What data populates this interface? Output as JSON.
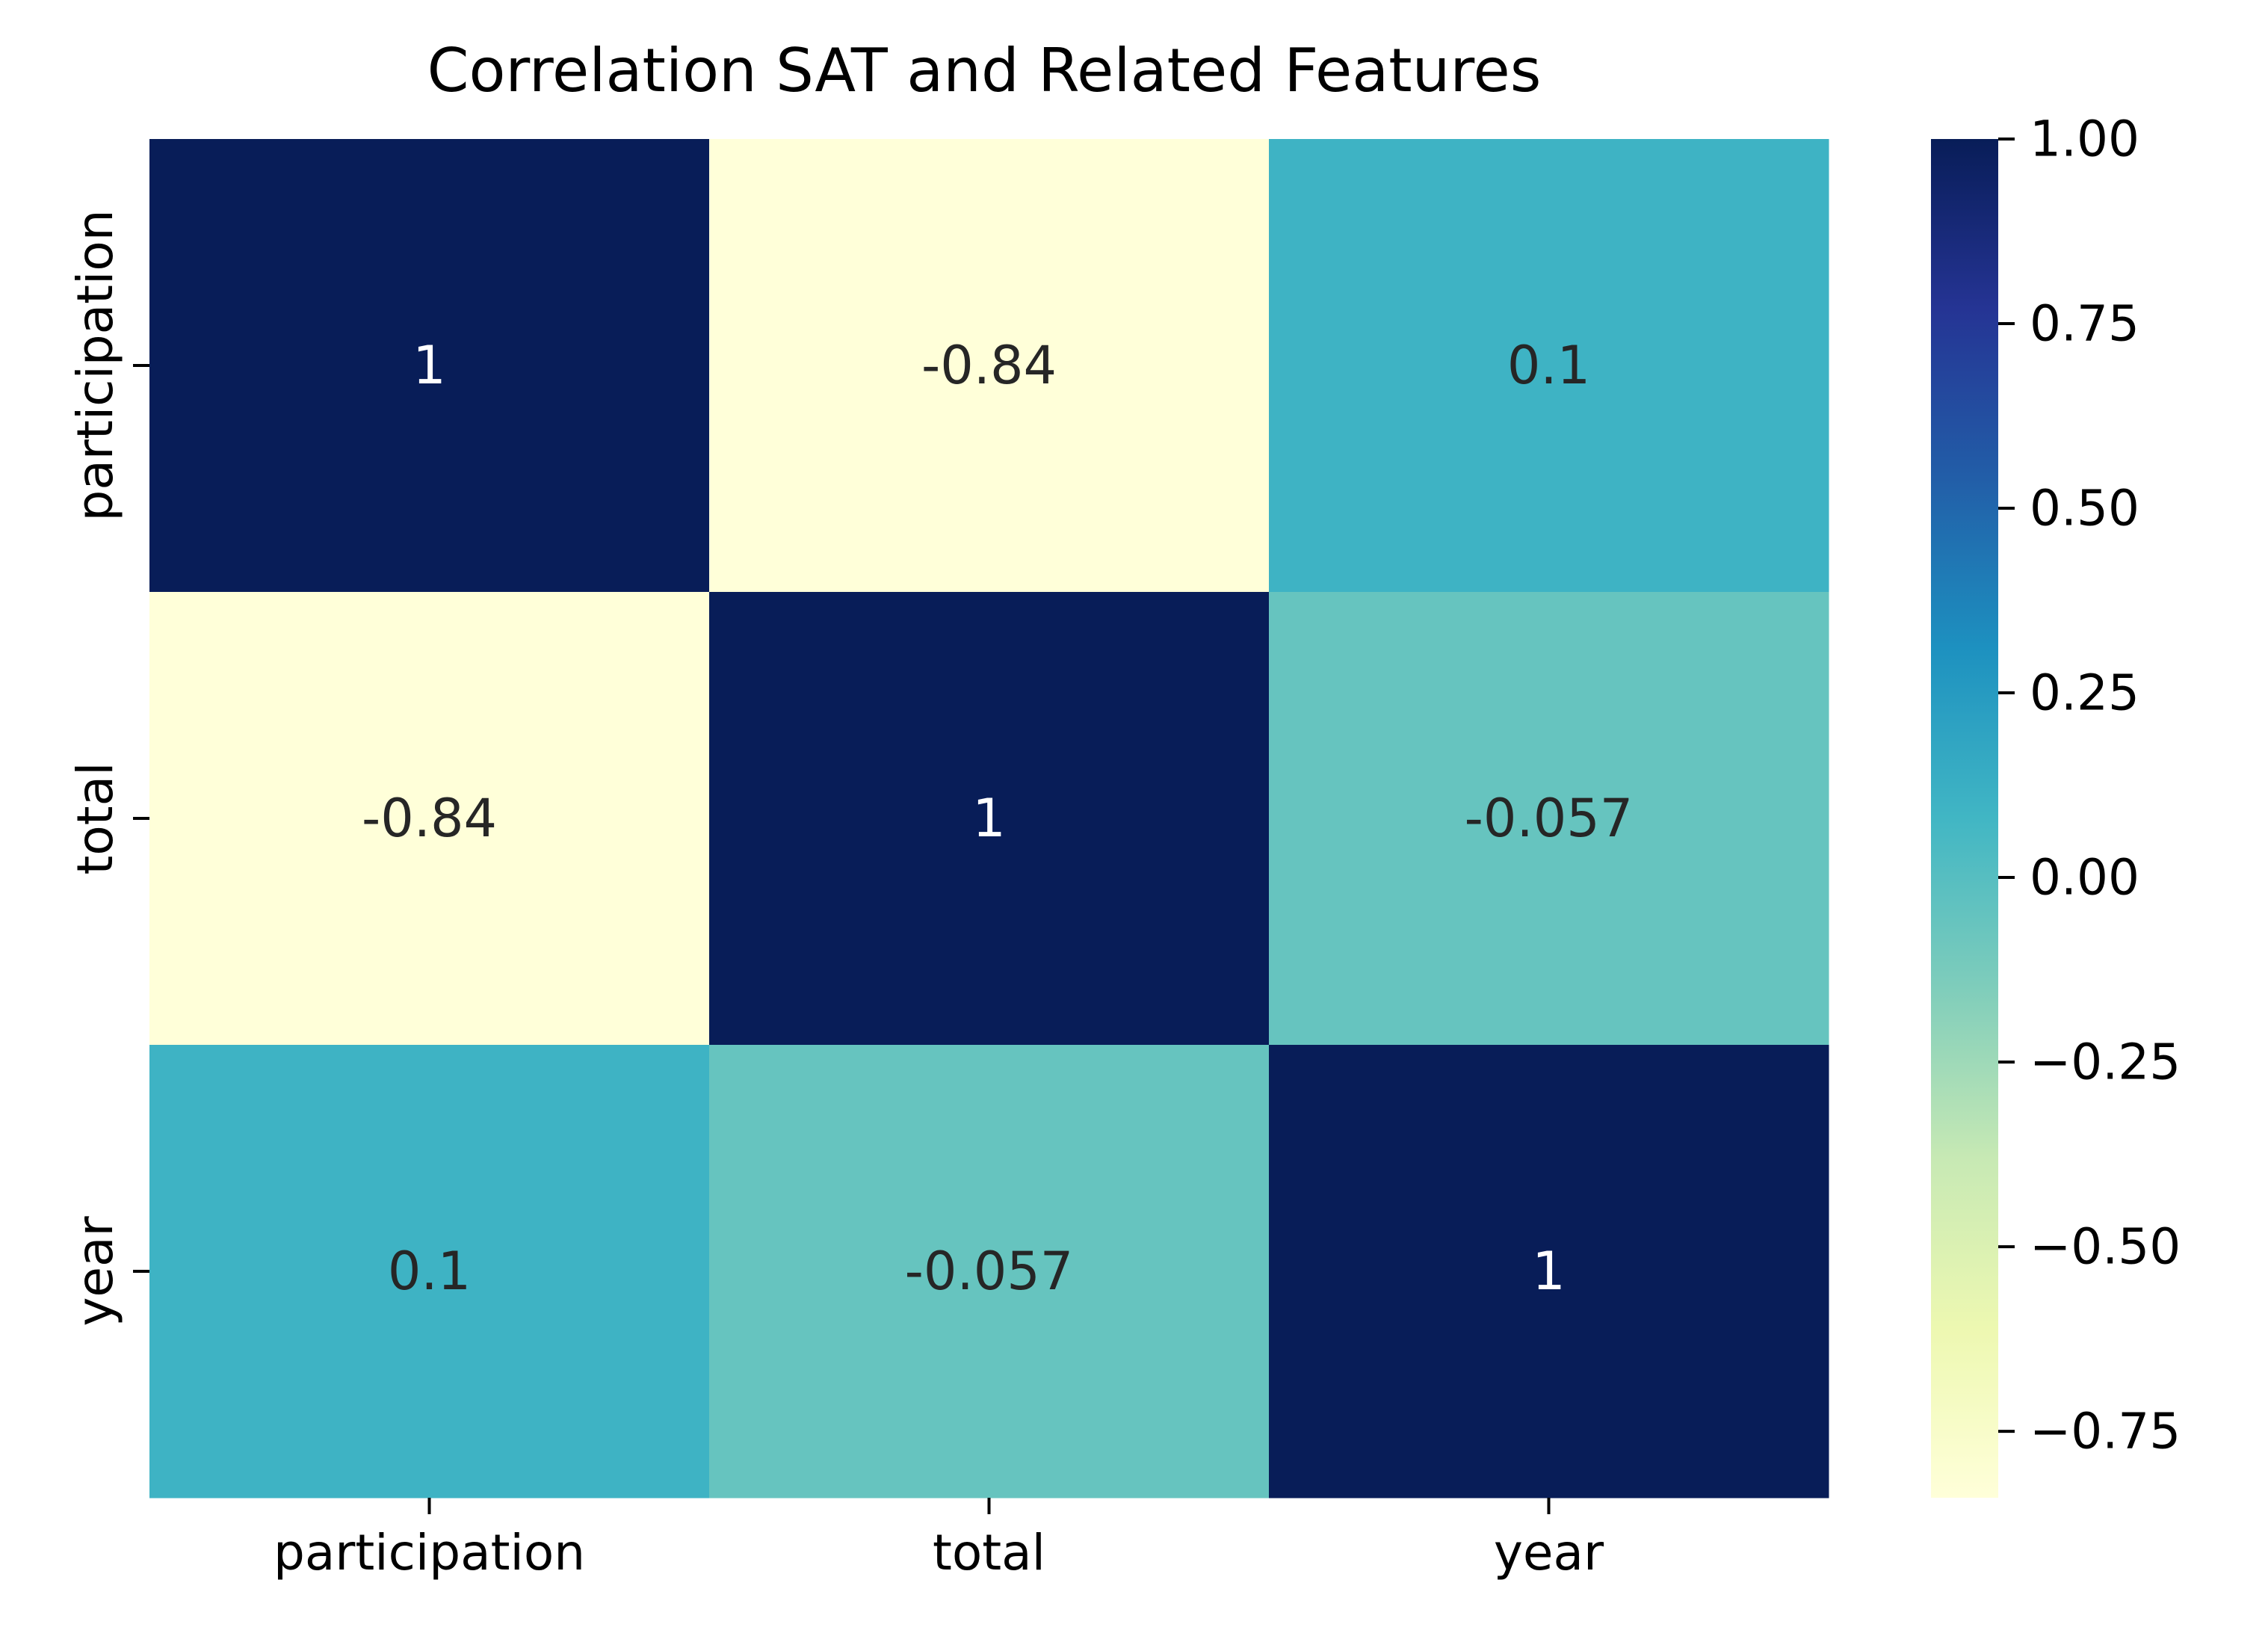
{
  "chart_data": {
    "type": "heatmap",
    "title": "Correlation SAT and Related Features",
    "xlabel": "",
    "ylabel": "",
    "x_categories": [
      "participation",
      "total",
      "year"
    ],
    "y_categories": [
      "participation",
      "total",
      "year"
    ],
    "values": [
      [
        1,
        -0.84,
        0.1
      ],
      [
        -0.84,
        1,
        -0.057
      ],
      [
        0.1,
        -0.057,
        1
      ]
    ],
    "annotations": [
      [
        "1",
        "-0.84",
        "0.1"
      ],
      [
        "-0.84",
        "1",
        "-0.057"
      ],
      [
        "0.1",
        "-0.057",
        "1"
      ]
    ],
    "colormap": "YlGnBu",
    "colormap_stops": [
      "#ffffd9",
      "#edf8b1",
      "#c7e9b4",
      "#7fcdbb",
      "#41b6c4",
      "#1d91c0",
      "#225ea8",
      "#253494",
      "#081d58"
    ],
    "vmin": -0.84,
    "vmax": 1,
    "colorbar": {
      "ticks": [
        1.0,
        0.75,
        0.5,
        0.25,
        0.0,
        -0.25,
        -0.5,
        -0.75
      ],
      "tick_labels": [
        "1.00",
        "0.75",
        "0.50",
        "0.25",
        "0.00",
        "−0.25",
        "−0.50",
        "−0.75"
      ]
    },
    "grid": false,
    "annotation_light_text": "#ffffff",
    "annotation_dark_text": "#262626"
  }
}
